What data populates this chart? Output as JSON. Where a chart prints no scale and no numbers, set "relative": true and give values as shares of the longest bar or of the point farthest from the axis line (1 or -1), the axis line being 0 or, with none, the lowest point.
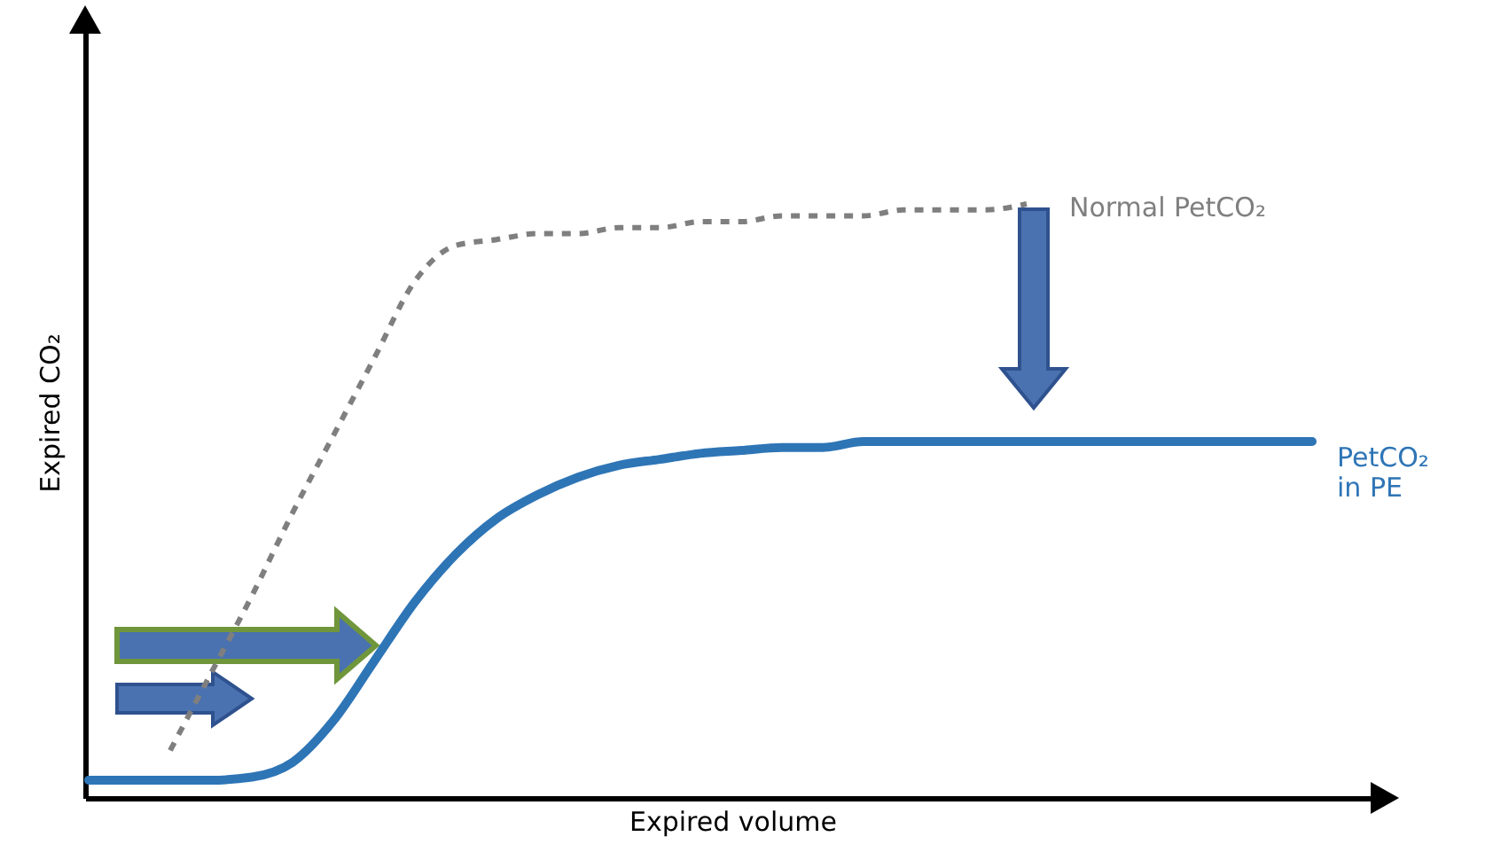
{
  "chart_data": {
    "type": "line",
    "relative": true,
    "xlabel": "Expired volume",
    "ylabel": "Expired CO₂",
    "categories": [
      null,
      null,
      null,
      null,
      null,
      null,
      null,
      null,
      null,
      null,
      null,
      null,
      null,
      null,
      null,
      null,
      null,
      null,
      null,
      null,
      null,
      null,
      null,
      null,
      null,
      null,
      null,
      null,
      null,
      null,
      null
    ],
    "series": [
      {
        "name": "Normal PetCO₂",
        "color": "#7f7f7f",
        "line_style": "dashed",
        "values": [
          null,
          null,
          0.08,
          0.21,
          0.34,
          0.48,
          0.61,
          0.74,
          0.87,
          0.93,
          0.94,
          0.95,
          0.95,
          0.96,
          0.96,
          0.97,
          0.97,
          0.98,
          0.98,
          0.98,
          0.99,
          0.99,
          0.99,
          1.0,
          null,
          null,
          null,
          null,
          null,
          null,
          null
        ]
      },
      {
        "name": "PetCO₂ in PE",
        "color": "#2e75b6",
        "line_style": "solid",
        "values": [
          0.03,
          0.03,
          0.03,
          0.03,
          0.035,
          0.06,
          0.13,
          0.23,
          0.33,
          0.41,
          0.47,
          0.51,
          0.54,
          0.56,
          0.57,
          0.58,
          0.585,
          0.59,
          0.59,
          0.6,
          0.6,
          0.6,
          0.6,
          0.6,
          0.6,
          0.6,
          0.6,
          0.6,
          0.6,
          0.6,
          0.6
        ]
      }
    ]
  }
}
